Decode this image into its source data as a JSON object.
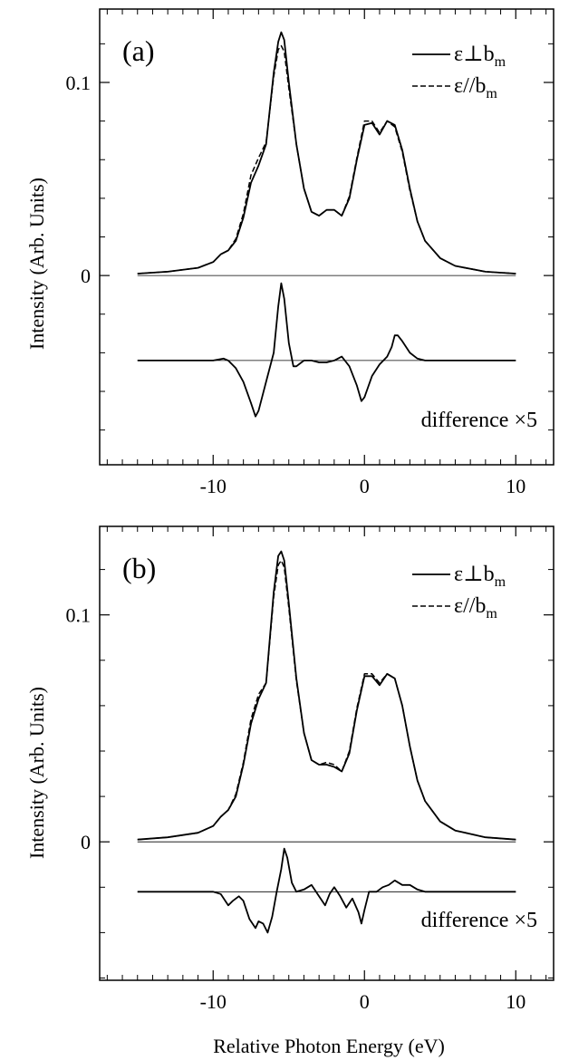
{
  "figure": {
    "ylabel": "Intensity (Arb. Units)",
    "xlabel": "Relative Photon Energy (eV)"
  },
  "chart_data": [
    {
      "type": "line",
      "panel_label": "(a)",
      "xlim": [
        -17.5,
        12.5
      ],
      "ylim": [
        -0.098,
        0.138
      ],
      "x_ticks": [
        {
          "value": -10,
          "label": "-10"
        },
        {
          "value": 0,
          "label": "0"
        },
        {
          "value": 10,
          "label": "10"
        }
      ],
      "y_ticks": [
        {
          "value": 0,
          "label": "0"
        },
        {
          "value": 0.1,
          "label": "0.1"
        }
      ],
      "legend": {
        "position": "top-right"
      },
      "series": [
        {
          "name": "ε⊥b",
          "name_subscript": "m",
          "style": "solid",
          "x": [
            -15,
            -13,
            -11,
            -10,
            -9.5,
            -9,
            -8.5,
            -8,
            -7.5,
            -7,
            -6.5,
            -6,
            -5.7,
            -5.5,
            -5.3,
            -5,
            -4.5,
            -4,
            -3.5,
            -3,
            -2.5,
            -2,
            -1.5,
            -1,
            -0.5,
            0,
            0.5,
            1,
            1.5,
            2,
            2.5,
            3,
            3.5,
            4,
            5,
            6,
            8,
            10
          ],
          "y": [
            0.001,
            0.002,
            0.004,
            0.007,
            0.011,
            0.013,
            0.018,
            0.03,
            0.048,
            0.057,
            0.068,
            0.105,
            0.121,
            0.126,
            0.122,
            0.1,
            0.068,
            0.045,
            0.033,
            0.031,
            0.034,
            0.034,
            0.031,
            0.04,
            0.06,
            0.078,
            0.079,
            0.073,
            0.08,
            0.078,
            0.065,
            0.045,
            0.028,
            0.018,
            0.009,
            0.005,
            0.002,
            0.001
          ]
        },
        {
          "name": "ε//b",
          "name_subscript": "m",
          "style": "dashed",
          "x": [
            -15,
            -13,
            -11,
            -10,
            -9.5,
            -9,
            -8.5,
            -8,
            -7.5,
            -7,
            -6.5,
            -6,
            -5.7,
            -5.5,
            -5.3,
            -5,
            -4.5,
            -4,
            -3.5,
            -3,
            -2.5,
            -2,
            -1.5,
            -1,
            -0.5,
            0,
            0.5,
            1,
            1.5,
            2,
            2.5,
            3,
            3.5,
            4,
            5,
            6,
            8,
            10
          ],
          "y": [
            0.001,
            0.002,
            0.004,
            0.007,
            0.011,
            0.013,
            0.019,
            0.032,
            0.052,
            0.061,
            0.069,
            0.103,
            0.117,
            0.119,
            0.116,
            0.097,
            0.068,
            0.045,
            0.033,
            0.031,
            0.034,
            0.034,
            0.031,
            0.041,
            0.061,
            0.08,
            0.08,
            0.074,
            0.08,
            0.077,
            0.064,
            0.044,
            0.028,
            0.018,
            0.009,
            0.005,
            0.002,
            0.001
          ]
        },
        {
          "name": "difference ×5",
          "style": "solid",
          "baseline": -0.044,
          "x": [
            -15,
            -11,
            -10,
            -9.3,
            -9,
            -8.5,
            -8,
            -7.5,
            -7.2,
            -7,
            -6.5,
            -6,
            -5.7,
            -5.5,
            -5.3,
            -5,
            -4.7,
            -4.5,
            -4,
            -3.5,
            -3,
            -2.5,
            -2,
            -1.5,
            -1,
            -0.5,
            -0.2,
            0,
            0.5,
            1,
            1.5,
            1.8,
            2,
            2.2,
            2.5,
            3,
            3.5,
            4,
            5,
            10
          ],
          "y": [
            -0.044,
            -0.044,
            -0.044,
            -0.043,
            -0.044,
            -0.048,
            -0.055,
            -0.066,
            -0.073,
            -0.07,
            -0.055,
            -0.04,
            -0.016,
            -0.004,
            -0.012,
            -0.035,
            -0.047,
            -0.047,
            -0.044,
            -0.044,
            -0.045,
            -0.045,
            -0.044,
            -0.042,
            -0.047,
            -0.057,
            -0.065,
            -0.063,
            -0.052,
            -0.046,
            -0.042,
            -0.037,
            -0.031,
            -0.031,
            -0.034,
            -0.04,
            -0.043,
            -0.044,
            -0.044,
            -0.044
          ]
        }
      ],
      "annotations": [
        {
          "text": "difference ×5"
        }
      ]
    },
    {
      "type": "line",
      "panel_label": "(b)",
      "xlim": [
        -17.5,
        12.5
      ],
      "ylim": [
        -0.061,
        0.139
      ],
      "x_ticks": [
        {
          "value": -10,
          "label": "-10"
        },
        {
          "value": 0,
          "label": "0"
        },
        {
          "value": 10,
          "label": "10"
        }
      ],
      "y_ticks": [
        {
          "value": 0,
          "label": "0"
        },
        {
          "value": 0.1,
          "label": "0.1"
        }
      ],
      "legend": {
        "position": "top-right"
      },
      "series": [
        {
          "name": "ε⊥b",
          "name_subscript": "m",
          "style": "solid",
          "x": [
            -15,
            -13,
            -11,
            -10,
            -9.5,
            -9,
            -8.5,
            -8,
            -7.5,
            -7,
            -6.5,
            -6,
            -5.7,
            -5.5,
            -5.3,
            -5,
            -4.5,
            -4,
            -3.5,
            -3,
            -2.5,
            -2,
            -1.5,
            -1,
            -0.5,
            0,
            0.5,
            1,
            1.5,
            2,
            2.5,
            3,
            3.5,
            4,
            5,
            6,
            8,
            10
          ],
          "y": [
            0.001,
            0.002,
            0.004,
            0.007,
            0.011,
            0.014,
            0.02,
            0.034,
            0.052,
            0.063,
            0.07,
            0.11,
            0.126,
            0.128,
            0.124,
            0.105,
            0.072,
            0.048,
            0.036,
            0.034,
            0.034,
            0.033,
            0.031,
            0.039,
            0.058,
            0.073,
            0.073,
            0.069,
            0.074,
            0.072,
            0.06,
            0.042,
            0.027,
            0.018,
            0.009,
            0.005,
            0.002,
            0.001
          ]
        },
        {
          "name": "ε//b",
          "name_subscript": "m",
          "style": "dashed",
          "x": [
            -15,
            -13,
            -11,
            -10,
            -9.5,
            -9,
            -8.5,
            -8,
            -7.5,
            -7,
            -6.5,
            -6,
            -5.7,
            -5.5,
            -5.3,
            -5,
            -4.5,
            -4,
            -3.5,
            -3,
            -2.5,
            -2,
            -1.5,
            -1,
            -0.5,
            0,
            0.5,
            1,
            1.5,
            2,
            2.5,
            3,
            3.5,
            4,
            5,
            6,
            8,
            10
          ],
          "y": [
            0.001,
            0.002,
            0.004,
            0.007,
            0.011,
            0.014,
            0.021,
            0.035,
            0.054,
            0.065,
            0.07,
            0.108,
            0.122,
            0.124,
            0.121,
            0.103,
            0.071,
            0.048,
            0.036,
            0.034,
            0.035,
            0.034,
            0.031,
            0.04,
            0.059,
            0.074,
            0.074,
            0.07,
            0.074,
            0.072,
            0.06,
            0.042,
            0.027,
            0.018,
            0.009,
            0.005,
            0.002,
            0.001
          ]
        },
        {
          "name": "difference ×5",
          "style": "solid",
          "baseline": -0.022,
          "x": [
            -15,
            -10,
            -9.5,
            -9,
            -8.7,
            -8.3,
            -8,
            -7.6,
            -7.2,
            -7,
            -6.7,
            -6.4,
            -6.1,
            -5.8,
            -5.5,
            -5.3,
            -5.1,
            -4.8,
            -4.5,
            -4,
            -3.5,
            -3,
            -2.6,
            -2.3,
            -2,
            -1.6,
            -1.2,
            -0.8,
            -0.4,
            -0.2,
            0,
            0.3,
            0.8,
            1.2,
            1.6,
            2,
            2.5,
            3,
            3.5,
            4,
            5,
            10
          ],
          "y": [
            -0.022,
            -0.022,
            -0.023,
            -0.028,
            -0.026,
            -0.024,
            -0.026,
            -0.034,
            -0.038,
            -0.035,
            -0.036,
            -0.04,
            -0.033,
            -0.022,
            -0.012,
            -0.003,
            -0.007,
            -0.018,
            -0.022,
            -0.021,
            -0.019,
            -0.024,
            -0.028,
            -0.023,
            -0.02,
            -0.024,
            -0.029,
            -0.025,
            -0.031,
            -0.036,
            -0.03,
            -0.022,
            -0.022,
            -0.02,
            -0.019,
            -0.017,
            -0.019,
            -0.019,
            -0.021,
            -0.022,
            -0.022,
            -0.022
          ]
        }
      ],
      "annotations": [
        {
          "text": "difference ×5"
        }
      ]
    }
  ]
}
